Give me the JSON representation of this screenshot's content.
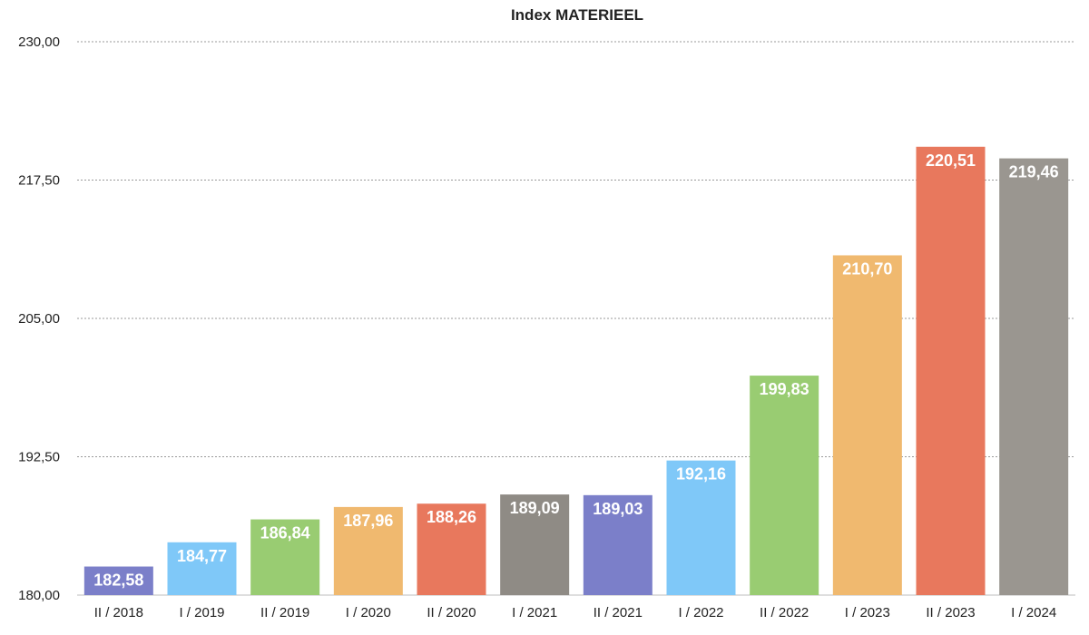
{
  "chart_data": {
    "type": "bar",
    "title": "Index MATERIEEL",
    "xlabel": "",
    "ylabel": "",
    "ylim": [
      180,
      230
    ],
    "yticks": [
      180,
      192.5,
      205,
      217.5,
      230
    ],
    "ytick_labels": [
      "180,00",
      "192,50",
      "205,00",
      "217,50",
      "230,00"
    ],
    "grid": true,
    "legend": "none",
    "categories": [
      "II / 2018",
      "I / 2019",
      "II / 2019",
      "I / 2020",
      "II / 2020",
      "I / 2021",
      "II / 2021",
      "I / 2022",
      "II / 2022",
      "I / 2023",
      "II / 2023",
      "I / 2024"
    ],
    "values": [
      182.58,
      184.77,
      186.84,
      187.96,
      188.26,
      189.09,
      189.03,
      192.16,
      199.83,
      210.7,
      220.51,
      219.46
    ],
    "value_labels": [
      "182,58",
      "184,77",
      "186,84",
      "187,96",
      "188,26",
      "189,09",
      "189,03",
      "192,16",
      "199,83",
      "210,70",
      "220,51",
      "219,46"
    ],
    "colors": [
      "#7b7fc9",
      "#7fc8f8",
      "#99cc72",
      "#f0b96f",
      "#e8785d",
      "#8f8b85",
      "#7b7fc9",
      "#7fc8f8",
      "#99cc72",
      "#f0b96f",
      "#e8785d",
      "#9a9690"
    ]
  }
}
